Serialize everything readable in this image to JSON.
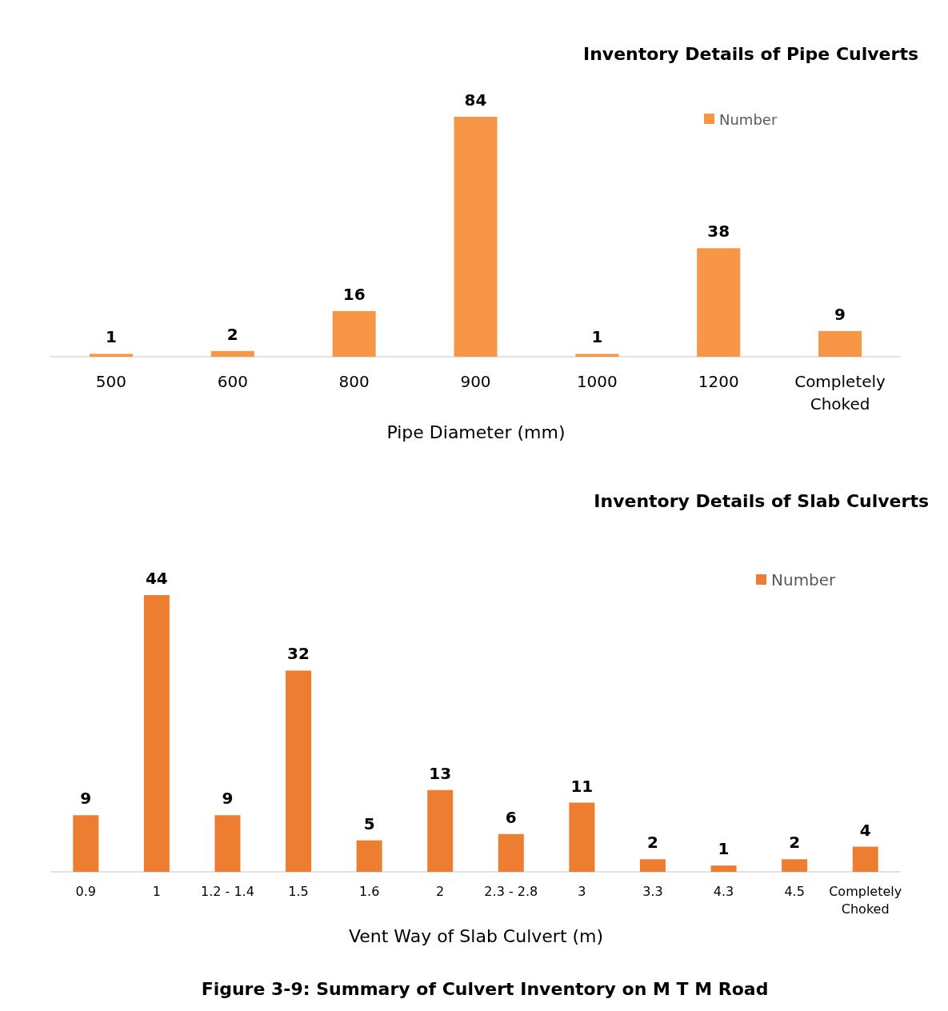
{
  "chart_data": [
    {
      "type": "bar",
      "title": "Inventory Details of Pipe Culverts",
      "xlabel": "Pipe Diameter (mm)",
      "categories": [
        "500",
        "600",
        "800",
        "900",
        "1000",
        "1200",
        "Completely Choked"
      ],
      "series": [
        {
          "name": "Number",
          "color": "#f79646",
          "values": [
            1,
            2,
            16,
            84,
            1,
            38,
            9
          ]
        }
      ],
      "data_labels": true,
      "legend": "top right"
    },
    {
      "type": "bar",
      "title": "Inventory Details of Slab Culverts",
      "xlabel": "Vent Way of Slab Culvert (m)",
      "categories": [
        "0.9",
        "1",
        "1.2 - 1.4",
        "1.5",
        "1.6",
        "2",
        "2.3 - 2.8",
        "3",
        "3.3",
        "4.3",
        "4.5",
        "Completely Choked"
      ],
      "series": [
        {
          "name": "Number",
          "color": "#ed7d31",
          "values": [
            9,
            44,
            9,
            32,
            5,
            13,
            6,
            11,
            2,
            1,
            2,
            4
          ]
        }
      ],
      "data_labels": true,
      "legend": "top right",
      "annotations": [
        "Figure 3-9: Summary of Culvert Inventory on M T M Road"
      ]
    }
  ]
}
